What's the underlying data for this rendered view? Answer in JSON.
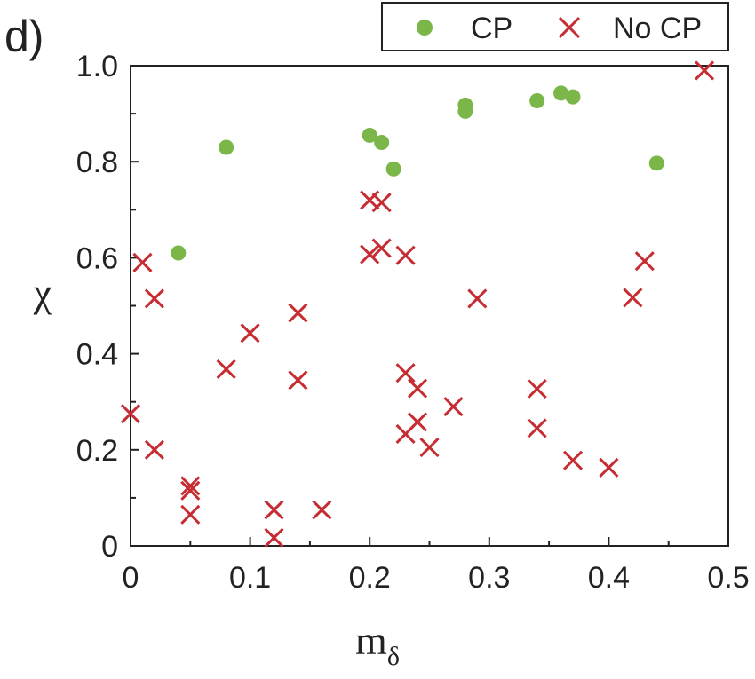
{
  "panel_label": "d)",
  "chart_data": {
    "type": "scatter",
    "xlabel": "m",
    "xlabel_subscript": "δ",
    "ylabel": "χ",
    "xlim": [
      0,
      0.5
    ],
    "ylim": [
      0,
      1.0
    ],
    "x_ticks": [
      "0",
      "0.1",
      "0.2",
      "0.3",
      "0.4",
      "0.5"
    ],
    "y_ticks": [
      "0",
      "0.2",
      "0.4",
      "0.6",
      "0.8",
      "1.0"
    ],
    "legend_position": "top-right, outside above plot",
    "series": [
      {
        "name": "CP",
        "marker": "circle",
        "color": "#7ab648",
        "x": [
          0.04,
          0.08,
          0.2,
          0.21,
          0.22,
          0.28,
          0.28,
          0.34,
          0.36,
          0.37,
          0.44
        ],
        "y": [
          0.61,
          0.83,
          0.855,
          0.84,
          0.785,
          0.905,
          0.918,
          0.927,
          0.943,
          0.935,
          0.797
        ]
      },
      {
        "name": "No CP",
        "marker": "x",
        "color": "#c62d33",
        "x": [
          0.0,
          0.01,
          0.02,
          0.02,
          0.05,
          0.05,
          0.05,
          0.08,
          0.1,
          0.12,
          0.12,
          0.14,
          0.14,
          0.16,
          0.2,
          0.2,
          0.21,
          0.21,
          0.23,
          0.23,
          0.23,
          0.24,
          0.24,
          0.25,
          0.27,
          0.29,
          0.34,
          0.34,
          0.37,
          0.4,
          0.42,
          0.43,
          0.48
        ],
        "y": [
          0.275,
          0.59,
          0.515,
          0.2,
          0.125,
          0.115,
          0.065,
          0.368,
          0.443,
          0.075,
          0.017,
          0.485,
          0.345,
          0.075,
          0.72,
          0.607,
          0.715,
          0.62,
          0.605,
          0.36,
          0.233,
          0.328,
          0.258,
          0.205,
          0.29,
          0.515,
          0.327,
          0.245,
          0.178,
          0.163,
          0.517,
          0.593,
          0.99
        ]
      }
    ]
  }
}
